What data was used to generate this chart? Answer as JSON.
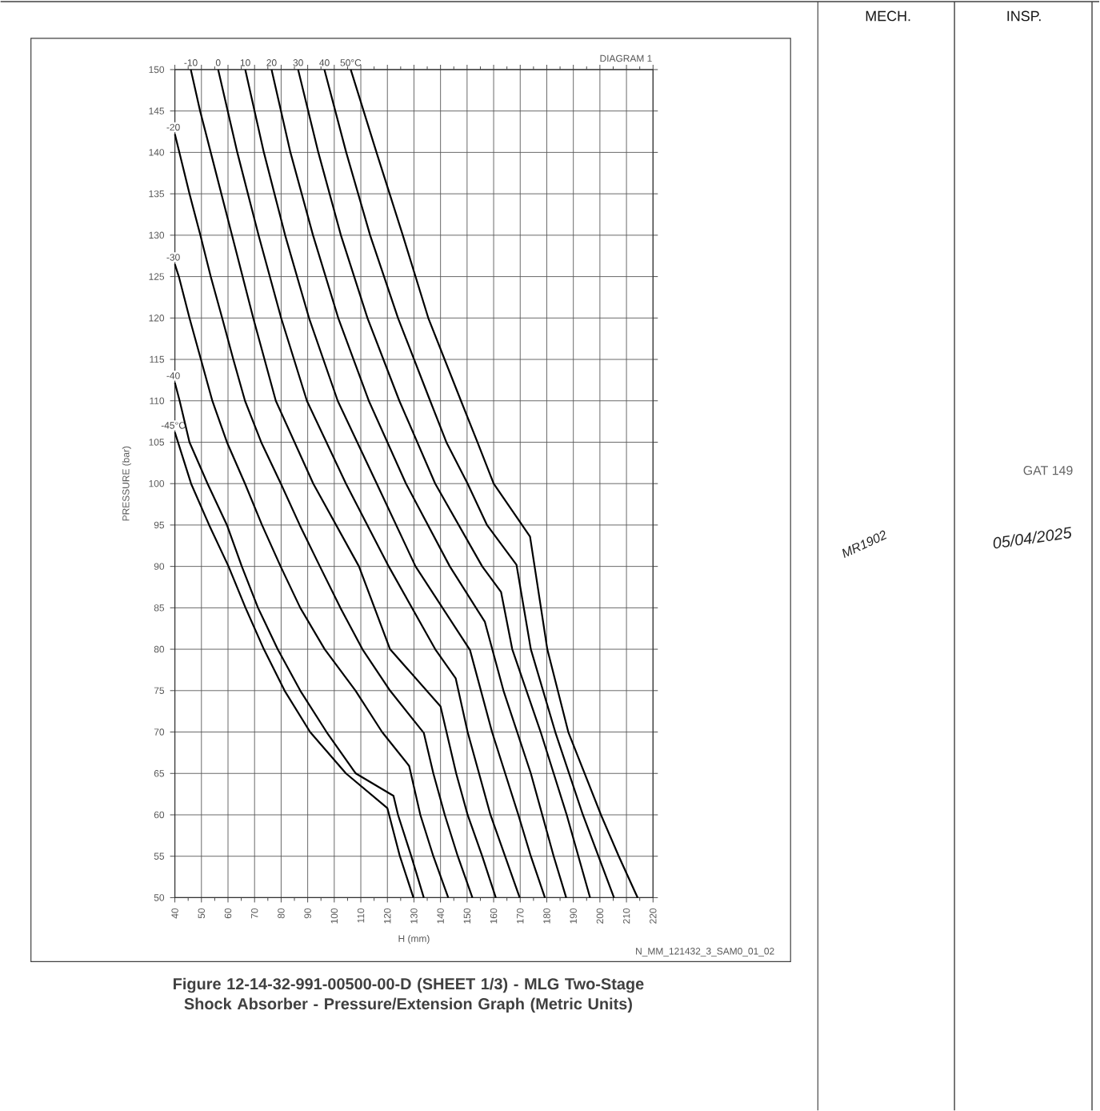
{
  "chart_data": {
    "type": "line",
    "title": "Figure 12-14-32-991-00500-00-D (SHEET 1/3) - MLG Two-Stage Shock Absorber - Pressure/Extension Graph (Metric Units)",
    "xlabel": "H (mm)",
    "ylabel": "PRESSURE (bar)",
    "annotations": [
      "DIAGRAM 1",
      "N_MM_121432_3_SAM0_01_02",
      "MECH.",
      "INSP.",
      "MR1902",
      "05/04/2025",
      "GAT 149"
    ],
    "xlim": [
      40,
      220
    ],
    "ylim": [
      50,
      150
    ],
    "xticks": [
      40,
      50,
      60,
      70,
      80,
      90,
      100,
      110,
      120,
      130,
      140,
      150,
      160,
      170,
      180,
      190,
      200,
      210,
      220
    ],
    "yticks": [
      50,
      55,
      60,
      65,
      70,
      75,
      80,
      85,
      90,
      95,
      100,
      105,
      110,
      115,
      120,
      125,
      130,
      135,
      140,
      145,
      150
    ],
    "grid": true,
    "marker": "none",
    "line_style": "solid",
    "series": [
      {
        "name": "-45°C",
        "color": "#000000",
        "x": [
          40,
          46.1,
          52.9,
          60.2,
          66.6,
          73.5,
          81.3,
          90.9,
          104.4,
          120,
          124.7,
          129.8
        ],
        "values": [
          106.2,
          100,
          95,
          90,
          85,
          80,
          75,
          70,
          65,
          60.8,
          55,
          50
        ]
      },
      {
        "name": "-40",
        "color": "#000000",
        "x": [
          40,
          41.8,
          45.5,
          52.3,
          59.6,
          65.2,
          71.3,
          78.7,
          87.2,
          97.1,
          108.1,
          122.3,
          124,
          129,
          133.7
        ],
        "values": [
          112.2,
          110,
          105,
          100,
          95,
          90,
          85,
          80,
          75,
          70,
          65,
          62.3,
          60,
          55,
          50
        ]
      },
      {
        "name": "-30",
        "color": "#000000",
        "x": [
          40,
          41.5,
          45.5,
          49.8,
          54.1,
          59.6,
          66.4,
          72.8,
          79.8,
          87.2,
          96.4,
          108,
          118,
          128.2,
          132.4,
          137.3,
          142.9
        ],
        "values": [
          126.5,
          125,
          120,
          115,
          110,
          105,
          100,
          95,
          90,
          85,
          80,
          75,
          70,
          65.9,
          60,
          55,
          50
        ]
      },
      {
        "name": "-20",
        "color": "#000000",
        "x": [
          40,
          41.7,
          45.5,
          49.6,
          53.5,
          57.8,
          62,
          66.4,
          72.5,
          79.9,
          87,
          94.6,
          102.3,
          110.6,
          121,
          133.7,
          137.3,
          141.6,
          146.5,
          152
        ],
        "values": [
          142.2,
          140,
          135,
          130,
          125,
          120,
          115,
          110,
          105,
          100,
          95,
          90,
          85,
          80,
          75,
          69.9,
          65,
          60,
          55,
          50
        ]
      },
      {
        "name": "-10",
        "color": "#000000",
        "x": [
          46,
          49.5,
          53.5,
          61.5,
          69.5,
          78,
          92.1,
          109.3,
          121,
          140,
          145.9,
          150.2,
          155.7,
          160.8
        ],
        "values": [
          150,
          145,
          140,
          130,
          120,
          110,
          100,
          90,
          80,
          73.1,
          65,
          60,
          55,
          50
        ]
      },
      {
        "name": "0",
        "color": "#000000",
        "x": [
          56.3,
          63.5,
          71.5,
          80,
          89.7,
          104.4,
          120.5,
          138,
          145.7,
          150.2,
          158.8,
          164.3,
          169.8
        ],
        "values": [
          150,
          140,
          130,
          120,
          110,
          100,
          90,
          80,
          76.5,
          70,
          60,
          55,
          50
        ]
      },
      {
        "name": "10",
        "color": "#000000",
        "x": [
          66.5,
          73.5,
          81.5,
          90.5,
          101.3,
          116,
          130.6,
          151.1,
          159.4,
          169.3,
          174,
          179.3
        ],
        "values": [
          150,
          140,
          130,
          120,
          110,
          100,
          90,
          79.9,
          70,
          60,
          55,
          50
        ]
      },
      {
        "name": "20",
        "color": "#000000",
        "x": [
          76.4,
          83.5,
          92,
          101.5,
          113,
          127,
          143.5,
          156.7,
          163.7,
          174,
          182.6,
          187.3
        ],
        "values": [
          150,
          140,
          130,
          120,
          110,
          100,
          90,
          83.3,
          75,
          65,
          55,
          50
        ]
      },
      {
        "name": "30",
        "color": "#000000",
        "x": [
          86.4,
          94,
          102.5,
          112.5,
          124.5,
          138,
          155.7,
          162.8,
          167,
          177.7,
          187.5,
          196.3
        ],
        "values": [
          150,
          140,
          130,
          120,
          110,
          100,
          90,
          86.9,
          80,
          70,
          60,
          50
        ]
      },
      {
        "name": "40",
        "color": "#000000",
        "x": [
          96.3,
          104.5,
          113.5,
          124,
          136.1,
          142.2,
          150.2,
          157.5,
          168.6,
          174,
          183.2,
          193.6,
          205.3
        ],
        "values": [
          150,
          140,
          130,
          120,
          110,
          105,
          100,
          95,
          90.2,
          80,
          70,
          60,
          50
        ]
      },
      {
        "name": "50°C",
        "color": "#000000",
        "x": [
          106.2,
          115.9,
          125.8,
          135.4,
          147.7,
          153.9,
          160,
          173.7,
          180.2,
          188.1,
          200.4,
          207.1,
          214.2
        ],
        "values": [
          150,
          140,
          130,
          120,
          110,
          105,
          100,
          93.6,
          80,
          70,
          60,
          55,
          50
        ]
      }
    ]
  }
}
